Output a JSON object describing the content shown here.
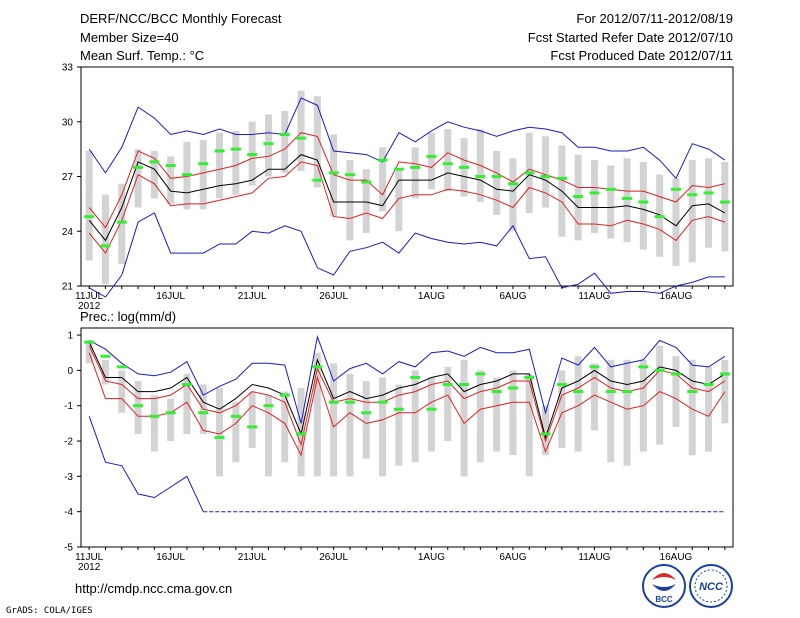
{
  "header": {
    "left": [
      "DERF/NCC/BCC Monthly Forecast",
      "Member Size=40",
      "Mean Surf. Temp.: °C"
    ],
    "right": [
      "For 2012/07/11-2012/08/19",
      "Fcst Started Refer Date 2012/07/10",
      "Fcst Produced Date 2012/07/11"
    ]
  },
  "footer": {
    "url": "http://cmdp.ncc.cma.gov.cn",
    "credit": "GrADS: COLA/IGES",
    "logos": [
      "BCC",
      "NCC"
    ]
  },
  "colors": {
    "outer": "#1a1acc",
    "inner": "#dd2222",
    "mean": "#000000",
    "box": "#d3d3d3",
    "obs": "#33ee33"
  },
  "chart_data": [
    {
      "type": "ensemble-plume",
      "title": "Mean Surf. Temp.: °C",
      "unit": "°C",
      "ylim": [
        21,
        33
      ],
      "yticks": [
        21,
        24,
        27,
        30,
        33
      ],
      "days": 40,
      "xticks": [
        {
          "day": 1,
          "label": "11JUL",
          "sub": "2012"
        },
        {
          "day": 6,
          "label": "16JUL"
        },
        {
          "day": 11,
          "label": "21JUL"
        },
        {
          "day": 16,
          "label": "26JUL"
        },
        {
          "day": 22,
          "label": "1AUG"
        },
        {
          "day": 27,
          "label": "6AUG"
        },
        {
          "day": 32,
          "label": "11AUG"
        },
        {
          "day": 37,
          "label": "16AUG"
        }
      ],
      "box_low": [
        22.4,
        21.1,
        22.2,
        25.3,
        25.8,
        25.5,
        25.2,
        25.2,
        25.8,
        26.0,
        26.5,
        27.0,
        27.2,
        27.3,
        26.4,
        24.8,
        23.5,
        23.9,
        25.1,
        24.0,
        25.8,
        26.3,
        26.2,
        25.9,
        25.6,
        24.9,
        24.0,
        25.0,
        25.3,
        23.7,
        23.5,
        23.9,
        23.6,
        23.4,
        23.0,
        22.6,
        22.1,
        22.3,
        23.1,
        22.9
      ],
      "box_high": [
        28.4,
        26.0,
        26.6,
        28.5,
        28.4,
        28.1,
        28.9,
        29.0,
        29.4,
        29.5,
        30.0,
        30.4,
        30.6,
        31.7,
        31.4,
        29.3,
        27.9,
        27.4,
        28.6,
        27.3,
        28.6,
        29.4,
        29.6,
        29.1,
        29.6,
        28.4,
        28.0,
        29.4,
        29.2,
        28.7,
        28.2,
        27.9,
        27.6,
        28.0,
        27.8,
        27.1,
        26.9,
        27.9,
        28.0,
        27.8
      ],
      "outer_high": [
        28.5,
        27.2,
        28.6,
        30.8,
        30.2,
        29.3,
        29.5,
        29.3,
        29.6,
        29.3,
        29.3,
        29.4,
        29.3,
        31.3,
        30.9,
        28.4,
        28.3,
        28.2,
        27.8,
        29.4,
        28.9,
        29.5,
        30.0,
        29.7,
        29.5,
        29.2,
        29.5,
        29.7,
        29.6,
        29.4,
        28.6,
        28.6,
        28.4,
        28.4,
        28.6,
        27.9,
        26.9,
        28.8,
        28.5,
        27.9
      ],
      "inner_high": [
        25.3,
        24.2,
        26.0,
        28.4,
        28.0,
        26.9,
        27.0,
        27.2,
        27.4,
        27.6,
        28.0,
        28.1,
        28.5,
        29.4,
        29.2,
        27.1,
        26.8,
        26.8,
        26.0,
        27.8,
        27.7,
        27.5,
        28.3,
        27.9,
        27.6,
        27.2,
        26.7,
        27.4,
        27.1,
        26.8,
        26.4,
        26.4,
        26.3,
        26.2,
        26.2,
        25.9,
        25.6,
        26.5,
        26.4,
        26.6
      ],
      "mean": [
        24.6,
        23.5,
        25.3,
        27.8,
        27.4,
        26.2,
        26.1,
        26.3,
        26.5,
        26.6,
        26.8,
        27.4,
        27.4,
        28.2,
        27.9,
        25.6,
        25.6,
        25.6,
        25.4,
        26.8,
        26.8,
        26.8,
        27.2,
        27.0,
        26.8,
        26.3,
        26.2,
        27.1,
        26.8,
        26.2,
        25.3,
        25.3,
        25.3,
        25.4,
        25.2,
        24.9,
        24.3,
        25.4,
        25.5,
        25.0
      ],
      "inner_low": [
        23.9,
        22.8,
        24.6,
        27.1,
        26.6,
        25.4,
        25.5,
        25.5,
        25.7,
        25.9,
        26.1,
        26.9,
        27.0,
        27.8,
        27.6,
        24.8,
        24.7,
        25.0,
        24.7,
        25.8,
        26.0,
        26.0,
        26.3,
        26.2,
        26.0,
        25.7,
        25.3,
        26.4,
        26.1,
        25.6,
        24.4,
        24.4,
        24.3,
        24.6,
        24.4,
        24.1,
        23.5,
        24.6,
        24.8,
        24.5
      ],
      "outer_low": [
        20.9,
        20.4,
        21.6,
        24.5,
        25.0,
        22.8,
        22.8,
        22.8,
        23.3,
        23.3,
        24.0,
        23.9,
        24.3,
        24.0,
        22.0,
        21.6,
        22.9,
        23.1,
        23.4,
        22.8,
        23.9,
        23.6,
        23.4,
        23.3,
        23.4,
        23.2,
        24.3,
        22.5,
        22.6,
        20.9,
        21.1,
        21.7,
        20.6,
        20.7,
        20.7,
        20.6,
        21.0,
        21.2,
        21.5,
        21.5
      ],
      "observed": [
        24.8,
        23.2,
        24.5,
        27.5,
        27.8,
        27.6,
        27.1,
        27.7,
        28.4,
        28.5,
        28.2,
        28.8,
        29.3,
        29.1,
        26.8,
        27.2,
        27.1,
        26.7,
        27.9,
        27.4,
        27.5,
        28.1,
        27.7,
        27.5,
        27.0,
        27.0,
        26.6,
        27.2,
        27.0,
        26.9,
        25.9,
        26.1,
        26.3,
        25.8,
        25.6,
        24.8,
        26.3,
        26.0,
        26.1,
        25.6
      ]
    },
    {
      "type": "ensemble-plume",
      "title": "Prec.: log(mm/d)",
      "unit": "log(mm/d)",
      "ylim": [
        -5,
        1.2
      ],
      "yticks": [
        -5,
        -4,
        -3,
        -2,
        -1,
        0,
        1
      ],
      "days": 40,
      "xticks": [
        {
          "day": 1,
          "label": "11JUL",
          "sub": "2012"
        },
        {
          "day": 6,
          "label": "16JUL"
        },
        {
          "day": 11,
          "label": "21JUL"
        },
        {
          "day": 16,
          "label": "26JUL"
        },
        {
          "day": 22,
          "label": "1AUG"
        },
        {
          "day": 27,
          "label": "6AUG"
        },
        {
          "day": 32,
          "label": "11AUG"
        },
        {
          "day": 37,
          "label": "16AUG"
        }
      ],
      "box_low": [
        0.2,
        -0.4,
        -1.2,
        -1.8,
        -2.3,
        -2.0,
        -1.8,
        -1.8,
        -3.0,
        -2.6,
        -2.2,
        -3.0,
        -2.6,
        -3.0,
        -3.0,
        -3.0,
        -3.0,
        -2.5,
        -3.0,
        -2.7,
        -2.6,
        -2.3,
        -2.0,
        -3.0,
        -2.6,
        -2.3,
        -2.4,
        -3.0,
        -2.4,
        -2.2,
        -2.3,
        -1.7,
        -2.6,
        -2.7,
        -2.3,
        -2.1,
        -1.6,
        -2.4,
        -2.3,
        -1.5
      ],
      "box_high": [
        0.8,
        0.3,
        0.0,
        -0.3,
        -0.7,
        -0.8,
        -0.1,
        -0.4,
        -0.5,
        -0.9,
        -0.6,
        -0.7,
        -0.6,
        -0.5,
        0.5,
        0.2,
        -0.1,
        -0.3,
        -0.2,
        -0.4,
        0.0,
        -0.2,
        0.1,
        0.3,
        0.0,
        -0.2,
        0.0,
        -0.1,
        -1.0,
        0.0,
        0.4,
        0.2,
        0.3,
        0.3,
        0.3,
        0.7,
        0.4,
        0.3,
        0.1,
        0.3
      ],
      "outer_high": [
        0.85,
        0.6,
        0.2,
        -0.1,
        -0.15,
        -0.05,
        0.25,
        -0.7,
        -0.45,
        -0.25,
        0.2,
        0.2,
        0.15,
        -1.5,
        0.95,
        -0.3,
        0.05,
        0.2,
        -0.1,
        0.25,
        0.1,
        0.5,
        0.55,
        0.4,
        0.65,
        0.5,
        0.5,
        0.6,
        -1.2,
        0.35,
        0.15,
        0.65,
        0.1,
        0.2,
        0.3,
        0.85,
        0.65,
        0.15,
        0.1,
        0.4
      ],
      "inner_high": [
        0.7,
        -0.3,
        -0.4,
        -0.8,
        -0.8,
        -0.7,
        -0.4,
        -1.1,
        -1.2,
        -1.0,
        -0.6,
        -0.7,
        -0.9,
        -2.1,
        0.05,
        -0.9,
        -0.8,
        -0.9,
        -0.9,
        -0.7,
        -0.6,
        -0.4,
        -0.3,
        -0.8,
        -0.6,
        -0.5,
        -0.3,
        -0.3,
        -2.0,
        -0.7,
        -0.5,
        -0.2,
        -0.5,
        -0.6,
        -0.5,
        0.0,
        -0.1,
        -0.5,
        -0.6,
        -0.3
      ],
      "mean": [
        0.8,
        -0.2,
        -0.2,
        -0.6,
        -0.6,
        -0.5,
        -0.2,
        -0.9,
        -1.1,
        -0.8,
        -0.4,
        -0.5,
        -0.7,
        -1.8,
        0.3,
        -0.8,
        -0.6,
        -0.8,
        -0.7,
        -0.5,
        -0.4,
        -0.2,
        -0.1,
        -0.6,
        -0.4,
        -0.3,
        -0.1,
        -0.1,
        -1.9,
        -0.5,
        -0.3,
        0.0,
        -0.3,
        -0.4,
        -0.3,
        0.1,
        0.0,
        -0.3,
        -0.4,
        -0.1
      ],
      "inner_low": [
        0.5,
        -0.8,
        -0.8,
        -1.3,
        -1.3,
        -1.2,
        -0.9,
        -1.7,
        -1.8,
        -1.5,
        -1.0,
        -1.2,
        -1.5,
        -2.4,
        -0.2,
        -1.6,
        -1.2,
        -1.5,
        -1.4,
        -1.2,
        -1.2,
        -0.9,
        -0.7,
        -1.5,
        -1.1,
        -1.0,
        -0.9,
        -0.9,
        -2.3,
        -1.2,
        -1.0,
        -0.7,
        -0.9,
        -1.1,
        -1.0,
        -0.6,
        -0.8,
        -1.1,
        -1.3,
        -0.6
      ],
      "outer_low": [
        -1.3,
        -2.6,
        -2.7,
        -3.5,
        -3.6,
        -3.3,
        -3.0,
        -4.0,
        -4.0,
        -4.0,
        -4.0,
        -4.0,
        -4.0,
        -4.0,
        -4.0,
        -4.0,
        -4.0,
        -4.0,
        -4.0,
        -4.0,
        -4.0,
        -4.0,
        -4.0,
        -4.0,
        -4.0,
        -4.0,
        -4.0,
        -4.0,
        -4.0,
        -4.0,
        -4.0,
        -4.0,
        -4.0,
        -4.0,
        -4.0,
        -4.0,
        -4.0,
        -4.0,
        -4.0,
        -4.0
      ],
      "observed": [
        0.8,
        0.4,
        0.1,
        -1.0,
        -1.3,
        -1.2,
        -0.4,
        -1.2,
        -1.9,
        -1.3,
        -1.6,
        -1.0,
        -0.7,
        -1.8,
        0.1,
        -0.9,
        -0.9,
        -1.2,
        -0.9,
        -1.1,
        -0.2,
        -1.1,
        -0.4,
        -0.4,
        -0.1,
        -0.6,
        -0.5,
        -0.2,
        -1.8,
        -0.4,
        -0.6,
        0.1,
        -0.6,
        -0.6,
        0.1,
        0.0,
        -0.1,
        -0.6,
        -0.4,
        -0.1
      ]
    }
  ]
}
